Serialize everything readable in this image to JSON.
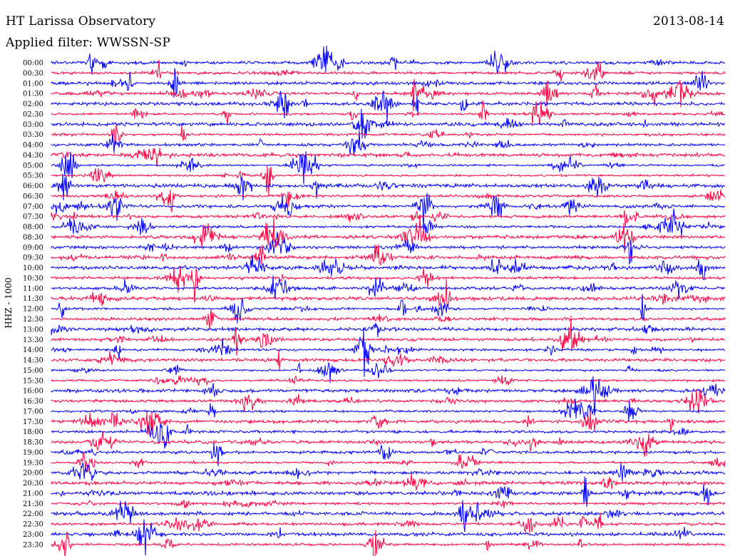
{
  "header": {
    "station": "HT Larissa Observatory",
    "date": "2013-08-14",
    "filter": "Applied filter: WWSSN-SP"
  },
  "chart_data": {
    "type": "line",
    "title": "HT Larissa Observatory",
    "date": "2013-08-14",
    "filter": "Applied filter: WWSSN-SP",
    "ylabel": "HHZ - 1000",
    "xlabel": "",
    "row_labels": [
      "00:00",
      "00:30",
      "01:00",
      "01:30",
      "02:00",
      "02:30",
      "03:00",
      "03:30",
      "04:00",
      "04:30",
      "05:00",
      "05:30",
      "06:00",
      "06:30",
      "07:00",
      "07:30",
      "08:00",
      "08:30",
      "09:00",
      "09:30",
      "10:00",
      "10:30",
      "11:00",
      "11:30",
      "12:00",
      "12:30",
      "13:00",
      "13:30",
      "14:00",
      "14:30",
      "15:00",
      "15:30",
      "16:00",
      "16:30",
      "17:00",
      "17:30",
      "18:00",
      "18:30",
      "19:00",
      "19:30",
      "20:00",
      "20:30",
      "21:00",
      "21:30",
      "22:00",
      "22:30",
      "23:00",
      "23:30"
    ],
    "row_colors": [
      "#0000ff",
      "#ff0040"
    ],
    "grid": false,
    "legend": "none"
  }
}
